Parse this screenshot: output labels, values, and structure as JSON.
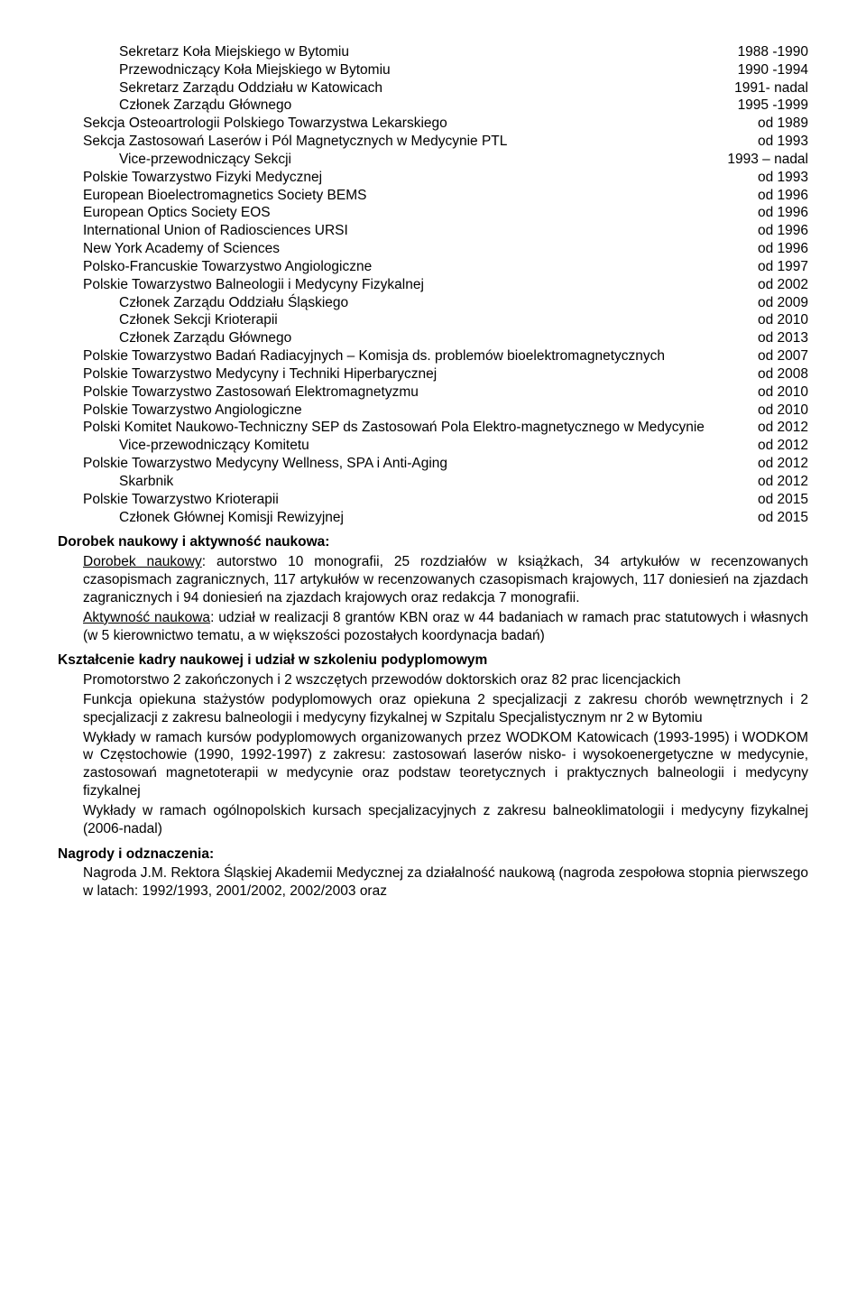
{
  "memberships": [
    {
      "label": "Sekretarz Koła Miejskiego w Bytomiu",
      "val": "1988 -1990",
      "indent": 1
    },
    {
      "label": "Przewodniczący Koła Miejskiego w Bytomiu",
      "val": "1990 -1994",
      "indent": 1
    },
    {
      "label": "Sekretarz Zarządu Oddziału w Katowicach",
      "val": "1991- nadal",
      "indent": 1
    },
    {
      "label": "Członek Zarządu Głównego",
      "val": "1995 -1999",
      "indent": 1
    },
    {
      "label": "Sekcja Osteoartrologii Polskiego Towarzystwa Lekarskiego",
      "val": "od 1989",
      "indent": 0
    },
    {
      "label": "Sekcja Zastosowań Laserów i Pól Magnetycznych w Medycynie PTL",
      "val": "od 1993",
      "indent": 0
    },
    {
      "label": "Vice-przewodniczący Sekcji",
      "val": "1993 – nadal",
      "indent": 1
    },
    {
      "label": "Polskie Towarzystwo Fizyki Medycznej",
      "val": "od 1993",
      "indent": 0
    },
    {
      "label": "European Bioelectromagnetics Society  BEMS",
      "val": "od 1996",
      "indent": 0
    },
    {
      "label": "European Optics Society EOS",
      "val": "od 1996",
      "indent": 0
    },
    {
      "label": "International Union of Radiosciences URSI",
      "val": "od 1996",
      "indent": 0
    },
    {
      "label": "New York Academy of Sciences",
      "val": "od 1996",
      "indent": 0
    },
    {
      "label": "Polsko-Francuskie Towarzystwo Angiologiczne",
      "val": "od 1997",
      "indent": 0
    },
    {
      "label": "Polskie Towarzystwo Balneologii i Medycyny Fizykalnej",
      "val": "od 2002",
      "indent": 0
    },
    {
      "label": "Członek Zarządu Oddziału Śląskiego",
      "val": "od 2009",
      "indent": 1
    },
    {
      "label": "Członek Sekcji Krioterapii",
      "val": "od 2010",
      "indent": 1
    },
    {
      "label": "Członek Zarządu Głównego",
      "val": "od 2013",
      "indent": 1
    },
    {
      "label": "Polskie Towarzystwo Badań Radiacyjnych – Komisja ds. problemów bioelektromagnetycznych",
      "val": "od 2007",
      "indent": 0
    },
    {
      "label": "Polskie Towarzystwo Medycyny i Techniki Hiperbarycznej",
      "val": "od 2008",
      "indent": 0
    },
    {
      "label": "Polskie Towarzystwo Zastosowań Elektromagnetyzmu",
      "val": "od 2010",
      "indent": 0
    },
    {
      "label": "Polskie Towarzystwo Angiologiczne",
      "val": "od 2010",
      "indent": 0
    },
    {
      "label": "Polski Komitet Naukowo-Techniczny SEP ds Zastosowań Pola Elektro-magnetycznego w Medycynie",
      "val": "od 2012",
      "indent": 0
    },
    {
      "label": "Vice-przewodniczący Komitetu",
      "val": "od 2012",
      "indent": 1
    },
    {
      "label": "Polskie Towarzystwo Medycyny Wellness, SPA i Anti-Aging",
      "val": "od 2012",
      "indent": 0
    },
    {
      "label": "Skarbnik",
      "val": "od 2012",
      "indent": 1
    },
    {
      "label": "Polskie Towarzystwo Krioterapii",
      "val": "od 2015",
      "indent": 0
    },
    {
      "label": "Członek Głównej Komisji Rewizyjnej",
      "val": "od 2015",
      "indent": 1
    }
  ],
  "sections": {
    "s1_title": "Dorobek naukowy i aktywność naukowa:",
    "s1_u1": "Dorobek naukowy",
    "s1_p1": ": autorstwo 10 monografii, 25 rozdziałów w książkach, 34 artykułów w recenzowanych czasopismach zagranicznych, 117 artykułów w recenzowanych czasopismach krajowych, 117 doniesień na zjazdach zagranicznych i 94 doniesień na zjazdach krajowych oraz redakcja 7 monografii.",
    "s1_u2": "Aktywność naukowa",
    "s1_p2": ": udział w realizacji 8 grantów KBN oraz w 44 badaniach w ramach prac statutowych i własnych (w 5 kierownictwo tematu, a w większości pozostałych koordynacja badań)",
    "s2_title": "Kształcenie kadry naukowej i udział w szkoleniu podyplomowym",
    "s2_p1": "Promotorstwo 2 zakończonych i 2 wszczętych przewodów doktorskich oraz 82 prac licencjackich",
    "s2_p2": "Funkcja opiekuna stażystów podyplomowych oraz opiekuna 2 specjalizacji z zakresu chorób wewnętrznych i 2 specjalizacji z zakresu balneologii i medycyny fizykalnej w Szpitalu Specjalistycznym nr 2 w Bytomiu",
    "s2_p3": "Wykłady w ramach kursów podyplomowych organizowanych przez WODKOM Katowicach (1993-1995) i WODKOM w Częstochowie (1990, 1992-1997) z zakresu: zastosowań laserów nisko- i wysokoenergetyczne w medycynie, zastosowań magnetoterapii w medycynie oraz podstaw teoretycznych i praktycznych balneologii i medycyny fizykalnej",
    "s2_p4": "Wykłady w ramach ogólnopolskich kursach specjalizacyjnych z zakresu balneoklimatologii i medycyny fizykalnej (2006-nadal)",
    "s3_title": "Nagrody i odznaczenia:",
    "s3_p1": "Nagroda J.M. Rektora Śląskiej Akademii Medycznej za działalność naukową (nagroda zespołowa stopnia pierwszego w latach: 1992/1993, 2001/2002, 2002/2003 oraz"
  }
}
